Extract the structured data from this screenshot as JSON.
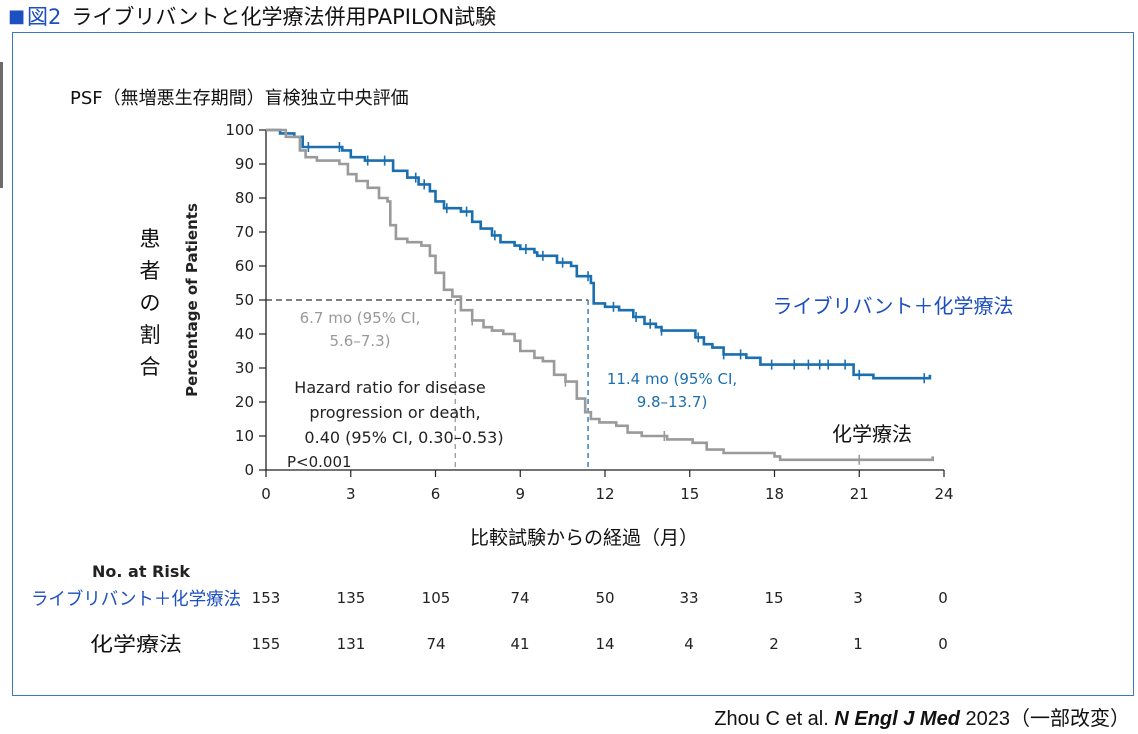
{
  "heading": {
    "marker": "■",
    "figure_no": "図2",
    "title": "ライブリバントと化学療法併用PAPILON試験"
  },
  "citation": {
    "prefix": "Zhou C et al. ",
    "journal": "N Engl J Med",
    "suffix": " 2023（一部改変）"
  },
  "colors": {
    "combo": "#1a6fb0",
    "chemo": "#9a9a9a",
    "blue_text": "#1c4fbf",
    "frame": "#3f78c2"
  },
  "chart_data": {
    "type": "line",
    "subtitle": "PSF（無増悪生存期間）盲検独立中央評価",
    "xlabel": "比較試験からの経過（月）",
    "ylabel": "Percentage of Patients",
    "ylabel_ja": "患者の割合",
    "xlim": [
      0,
      24
    ],
    "ylim": [
      0,
      100
    ],
    "x_ticks": [
      0,
      3,
      6,
      9,
      12,
      15,
      18,
      21,
      24
    ],
    "y_ticks": [
      0,
      10,
      20,
      30,
      40,
      50,
      60,
      70,
      80,
      90,
      100
    ],
    "grid": false,
    "series": [
      {
        "name": "ライブリバント＋化学療法",
        "color": "#1a6fb0",
        "points": [
          [
            0,
            100
          ],
          [
            0.5,
            99
          ],
          [
            1,
            98
          ],
          [
            1.3,
            95
          ],
          [
            2,
            95
          ],
          [
            2.7,
            94
          ],
          [
            3,
            92
          ],
          [
            3.5,
            91
          ],
          [
            4.3,
            91
          ],
          [
            4.5,
            88
          ],
          [
            5,
            86
          ],
          [
            5.4,
            84
          ],
          [
            5.8,
            82
          ],
          [
            6,
            79
          ],
          [
            6.3,
            77
          ],
          [
            6.9,
            76
          ],
          [
            7.3,
            73
          ],
          [
            7.6,
            71
          ],
          [
            8,
            69
          ],
          [
            8.3,
            67
          ],
          [
            8.8,
            66
          ],
          [
            9,
            65
          ],
          [
            9.5,
            64
          ],
          [
            9.6,
            63
          ],
          [
            10.3,
            61
          ],
          [
            10.8,
            60
          ],
          [
            11,
            57
          ],
          [
            11.5,
            55
          ],
          [
            11.6,
            49
          ],
          [
            12,
            48
          ],
          [
            12.5,
            47
          ],
          [
            13,
            45
          ],
          [
            13.4,
            43
          ],
          [
            13.8,
            42
          ],
          [
            14,
            41
          ],
          [
            15.2,
            39
          ],
          [
            15.5,
            37
          ],
          [
            15.8,
            36
          ],
          [
            16.2,
            34
          ],
          [
            17,
            33
          ],
          [
            17.5,
            31
          ],
          [
            18.5,
            31
          ],
          [
            19,
            31
          ],
          [
            20.7,
            31
          ],
          [
            20.8,
            28
          ],
          [
            21.5,
            27
          ],
          [
            23.4,
            27
          ],
          [
            23.5,
            28
          ]
        ],
        "censor_x": [
          1.5,
          2.6,
          3.6,
          4.2,
          5.3,
          5.6,
          6.4,
          7.1,
          8.1,
          9.2,
          9.8,
          10.5,
          11.4,
          12.3,
          13.1,
          13.6,
          14.0,
          15.3,
          16.2,
          16.8,
          17.9,
          18.7,
          19.2,
          19.6,
          19.9,
          20.5,
          21.0,
          23.3
        ]
      },
      {
        "name": "化学療法",
        "color": "#9a9a9a",
        "points": [
          [
            0,
            100
          ],
          [
            0.7,
            98
          ],
          [
            1.2,
            94
          ],
          [
            1.4,
            92
          ],
          [
            1.8,
            91
          ],
          [
            2.6,
            90
          ],
          [
            2.9,
            87
          ],
          [
            3.2,
            85
          ],
          [
            3.6,
            83
          ],
          [
            4,
            80
          ],
          [
            4.3,
            79
          ],
          [
            4.4,
            72
          ],
          [
            4.6,
            68
          ],
          [
            5,
            67
          ],
          [
            5.5,
            66
          ],
          [
            5.8,
            63
          ],
          [
            6,
            58
          ],
          [
            6.3,
            53
          ],
          [
            6.6,
            51
          ],
          [
            6.8,
            51
          ],
          [
            6.9,
            47
          ],
          [
            7.3,
            44
          ],
          [
            7.7,
            42
          ],
          [
            8,
            41
          ],
          [
            8.4,
            40
          ],
          [
            8.8,
            38
          ],
          [
            9,
            35
          ],
          [
            9.5,
            33
          ],
          [
            9.8,
            32
          ],
          [
            10.2,
            28
          ],
          [
            10.6,
            26
          ],
          [
            11,
            21
          ],
          [
            11.3,
            17
          ],
          [
            11.5,
            15
          ],
          [
            11.8,
            14
          ],
          [
            12.4,
            13
          ],
          [
            12.8,
            11
          ],
          [
            13.3,
            10
          ],
          [
            14.2,
            9
          ],
          [
            15.1,
            8
          ],
          [
            15.6,
            6
          ],
          [
            16.2,
            5
          ],
          [
            18,
            4
          ],
          [
            18.2,
            3
          ],
          [
            23.6,
            3
          ],
          [
            23.6,
            4
          ]
        ],
        "censor_x": [
          7.3,
          10.6,
          14.1,
          21.0
        ]
      }
    ],
    "median_line_y": 50,
    "annotations": {
      "chemo_median": [
        "6.7 mo (95% CI,",
        "5.6–7.3)"
      ],
      "chemo_median_x": 6.7,
      "combo_median": [
        "11.4 mo (95% CI,",
        "9.8–13.7)"
      ],
      "combo_median_x": 11.4,
      "hazard": [
        "Hazard ratio for disease",
        "progression or death,",
        "0.40 (95% CI, 0.30–0.53)",
        "P<0.001"
      ],
      "combo_label": "ライブリバント＋化学療法",
      "chemo_label": "化学療法"
    },
    "risk_table": {
      "header": "No. at Risk",
      "rows": [
        {
          "label": "ライブリバント＋化学療法",
          "values": [
            "153",
            "135",
            "105",
            "74",
            "50",
            "33",
            "15",
            "3",
            "0"
          ]
        },
        {
          "label": "化学療法",
          "values": [
            "155",
            "131",
            "74",
            "41",
            "14",
            "4",
            "2",
            "1",
            "0"
          ]
        }
      ]
    }
  }
}
